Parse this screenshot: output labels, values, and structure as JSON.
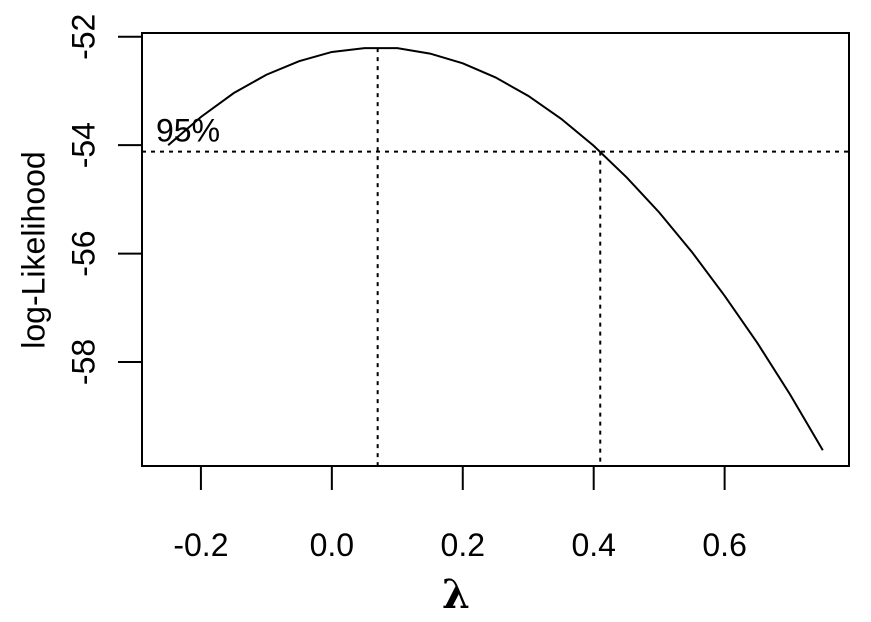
{
  "chart_data": {
    "type": "line",
    "x_label": "λ",
    "y_label": "log-Likelihood",
    "x": [
      -0.25,
      -0.2,
      -0.15,
      -0.1,
      -0.05,
      0.0,
      0.05,
      0.1,
      0.15,
      0.2,
      0.25,
      0.3,
      0.35,
      0.4,
      0.45,
      0.5,
      0.55,
      0.6,
      0.65,
      0.7,
      0.75
    ],
    "series": [
      {
        "color": "#000000",
        "values": [
          -54.0,
          -53.48,
          -53.04,
          -52.7,
          -52.45,
          -52.28,
          -52.21,
          -52.21,
          -52.31,
          -52.49,
          -52.75,
          -53.09,
          -53.51,
          -54.01,
          -54.59,
          -55.24,
          -55.97,
          -56.78,
          -57.65,
          -58.6,
          -59.63
        ]
      }
    ],
    "xlim": [
      -0.29,
      0.79
    ],
    "ylim": [
      -59.92,
      -51.93
    ],
    "xticks": [
      -0.2,
      {
        "value": 0,
        "label": "0.0"
      },
      0.2,
      0.4,
      0.6
    ],
    "yticks": [
      -52,
      -54,
      -56,
      -58
    ],
    "ci_annotation": "95%",
    "ci_level": -54.12,
    "reference_x": [
      0.07,
      0.41
    ]
  }
}
